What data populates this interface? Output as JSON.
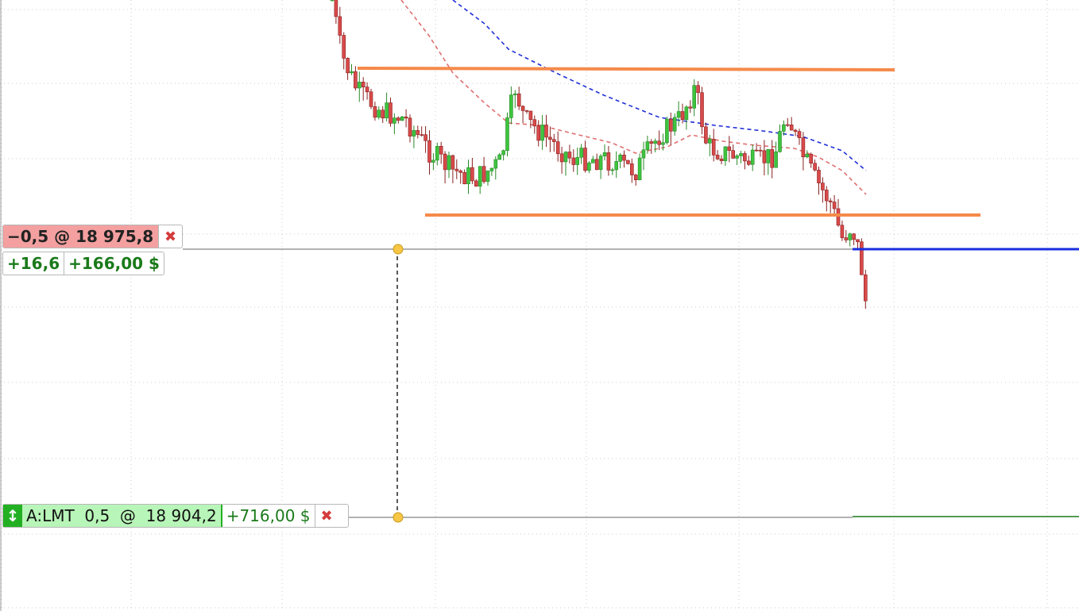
{
  "orders": [
    {
      "label": "−0,5 @ 18 975,8",
      "pnl_points": "+16,6",
      "pnl_cash": "+166,00 $"
    },
    {
      "label": "A:LMT  0,5  @  18 904,2",
      "pnl_cash": "+716,00 $"
    }
  ]
}
